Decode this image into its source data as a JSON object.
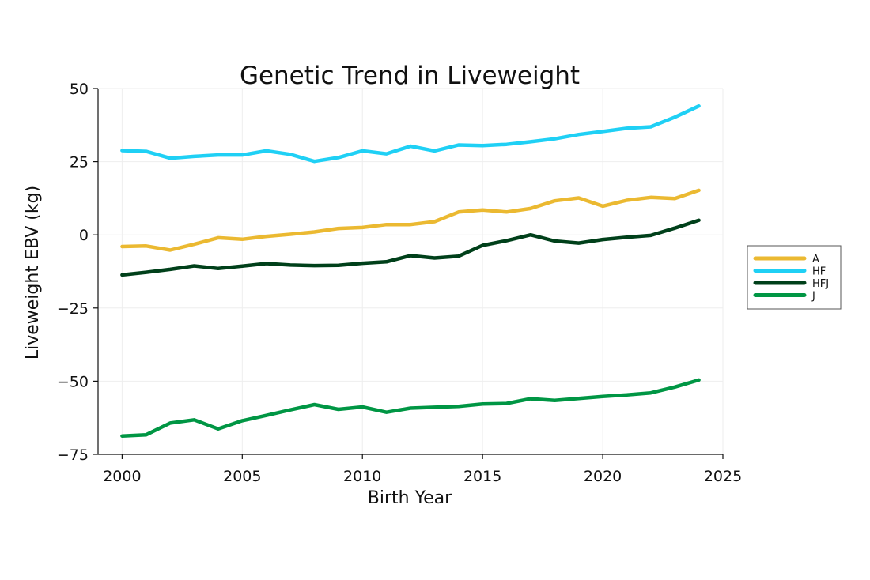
{
  "chart_data": {
    "type": "line",
    "title": "Genetic Trend in Liveweight",
    "xlabel": "Birth Year",
    "ylabel": "Liveweight EBV (kg)",
    "xlim": [
      1999,
      2025
    ],
    "ylim": [
      -75,
      50
    ],
    "xticks": [
      2000,
      2005,
      2010,
      2015,
      2020,
      2025
    ],
    "yticks": [
      50,
      25,
      0,
      -25,
      -50,
      -75
    ],
    "ytick_labels": [
      "50",
      "25",
      "0",
      "−25",
      "−50",
      "−75"
    ],
    "grid": true,
    "legend_position": "right",
    "x": [
      2000,
      2001,
      2002,
      2003,
      2004,
      2005,
      2006,
      2007,
      2008,
      2009,
      2010,
      2011,
      2012,
      2013,
      2014,
      2015,
      2016,
      2017,
      2018,
      2019,
      2020,
      2021,
      2022,
      2023,
      2024
    ],
    "series": [
      {
        "name": "A",
        "color": "#EBB931",
        "values": [
          -4,
          -3.8,
          -5.2,
          -3.2,
          -1,
          -1.5,
          -0.5,
          0.2,
          1,
          2.2,
          2.5,
          3.5,
          3.5,
          4.5,
          7.8,
          8.5,
          7.8,
          9,
          11.6,
          12.6,
          9.8,
          11.8,
          12.8,
          12.4,
          15.2
        ]
      },
      {
        "name": "HF",
        "color": "#1FD0F5",
        "values": [
          28.8,
          28.5,
          26.2,
          26.8,
          27.3,
          27.3,
          28.7,
          27.5,
          25.1,
          26.4,
          28.7,
          27.7,
          30.3,
          28.7,
          30.7,
          30.5,
          30.9,
          31.8,
          32.8,
          34.3,
          35.3,
          36.4,
          36.9,
          40.2,
          44
        ]
      },
      {
        "name": "HFJ",
        "color": "#00401A",
        "values": [
          -13.7,
          -12.8,
          -11.8,
          -10.6,
          -11.5,
          -10.7,
          -9.8,
          -10.3,
          -10.5,
          -10.4,
          -9.7,
          -9.2,
          -7.1,
          -7.9,
          -7.3,
          -3.6,
          -2,
          0,
          -2.1,
          -2.8,
          -1.6,
          -0.8,
          -0.2,
          2.3,
          5
        ]
      },
      {
        "name": "J",
        "color": "#009644",
        "values": [
          -68.7,
          -68.3,
          -64.3,
          -63.2,
          -66.3,
          -63.5,
          -61.7,
          -59.8,
          -58,
          -59.6,
          -58.8,
          -60.6,
          -59.2,
          -58.9,
          -58.6,
          -57.8,
          -57.6,
          -56,
          -56.6,
          -55.9,
          -55.2,
          -54.7,
          -54,
          -52,
          -49.6
        ]
      }
    ]
  }
}
